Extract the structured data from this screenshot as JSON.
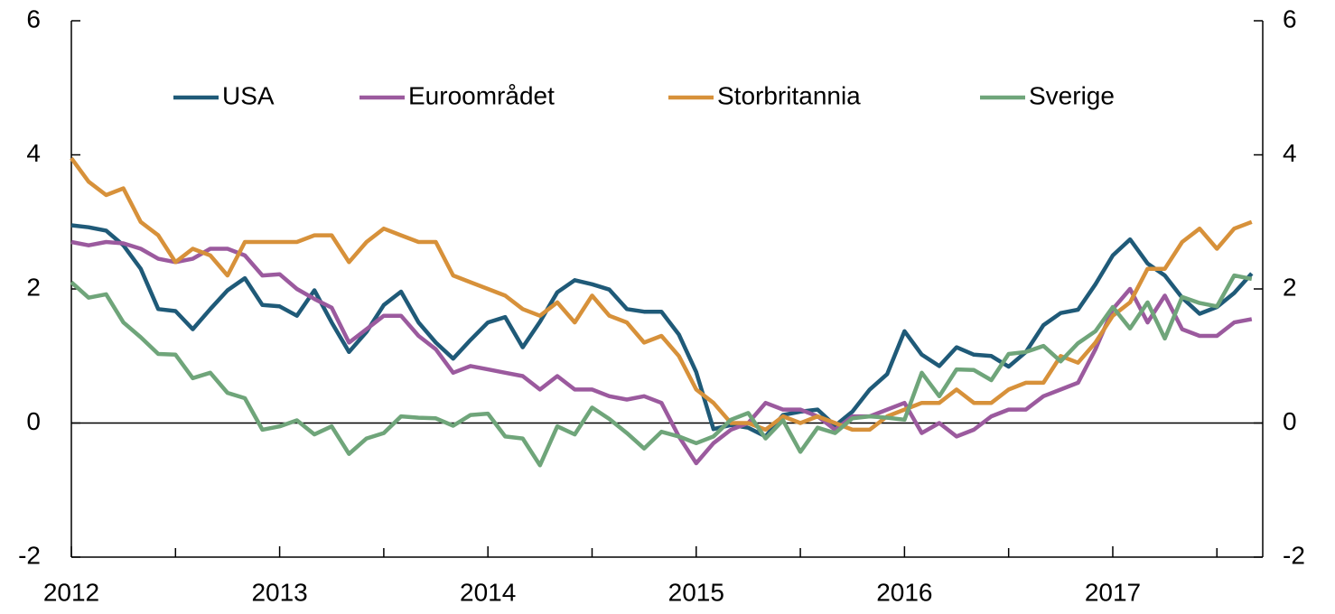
{
  "chart_data": {
    "type": "line",
    "xlim": [
      2012,
      2017.72
    ],
    "xticks": [
      2012,
      2013,
      2014,
      2015,
      2016,
      2017
    ],
    "xminorticks": [
      2012.5,
      2013.5,
      2014.5,
      2015.5,
      2016.5,
      2017.5
    ],
    "ylim": [
      -2,
      6
    ],
    "yticks": [
      -2,
      0,
      2,
      4,
      6
    ],
    "y2lim": [
      -2,
      6
    ],
    "y2ticks": [
      -2,
      0,
      2,
      4,
      6
    ],
    "zero_line": true,
    "legend": "top",
    "x": [
      2012,
      2012.083,
      2012.167,
      2012.25,
      2012.333,
      2012.417,
      2012.5,
      2012.583,
      2012.667,
      2012.75,
      2012.833,
      2012.917,
      2013,
      2013.083,
      2013.167,
      2013.25,
      2013.333,
      2013.417,
      2013.5,
      2013.583,
      2013.667,
      2013.75,
      2013.833,
      2013.917,
      2014,
      2014.083,
      2014.167,
      2014.25,
      2014.333,
      2014.417,
      2014.5,
      2014.583,
      2014.667,
      2014.75,
      2014.833,
      2014.917,
      2015,
      2015.083,
      2015.167,
      2015.25,
      2015.333,
      2015.417,
      2015.5,
      2015.583,
      2015.667,
      2015.75,
      2015.833,
      2015.917,
      2016,
      2016.083,
      2016.167,
      2016.25,
      2016.333,
      2016.417,
      2016.5,
      2016.583,
      2016.667,
      2016.75,
      2016.833,
      2016.917,
      2017,
      2017.083,
      2017.167,
      2017.25,
      2017.333,
      2017.417,
      2017.5,
      2017.583,
      2017.667
    ],
    "series": [
      {
        "name": "USA",
        "color": "#1f5a78",
        "values": [
          2.95,
          2.92,
          2.87,
          2.65,
          2.3,
          1.7,
          1.67,
          1.4,
          1.7,
          1.98,
          2.16,
          1.76,
          1.74,
          1.6,
          1.98,
          1.5,
          1.06,
          1.36,
          1.76,
          1.96,
          1.5,
          1.2,
          0.96,
          1.24,
          1.5,
          1.58,
          1.13,
          1.51,
          1.95,
          2.13,
          2.07,
          1.99,
          1.7,
          1.66,
          1.66,
          1.32,
          0.76,
          -0.09,
          -0.03,
          -0.07,
          -0.2,
          0.12,
          0.17,
          0.2,
          -0.04,
          0.17,
          0.5,
          0.73,
          1.37,
          1.02,
          0.85,
          1.13,
          1.02,
          1.0,
          0.84,
          1.06,
          1.46,
          1.64,
          1.69,
          2.07,
          2.5,
          2.74,
          2.38,
          2.2,
          1.87,
          1.63,
          1.73,
          1.94,
          2.23
        ]
      },
      {
        "name": "Euroområdet",
        "color": "#9b5a9e",
        "values": [
          2.7,
          2.65,
          2.7,
          2.68,
          2.6,
          2.45,
          2.4,
          2.45,
          2.6,
          2.6,
          2.5,
          2.2,
          2.22,
          2.0,
          1.85,
          1.72,
          1.2,
          1.4,
          1.6,
          1.6,
          1.3,
          1.1,
          0.75,
          0.85,
          0.8,
          0.75,
          0.7,
          0.5,
          0.7,
          0.5,
          0.5,
          0.4,
          0.35,
          0.4,
          0.3,
          -0.2,
          -0.6,
          -0.3,
          -0.1,
          0.0,
          0.3,
          0.2,
          0.2,
          0.1,
          -0.1,
          0.1,
          0.1,
          0.2,
          0.3,
          -0.15,
          0.0,
          -0.2,
          -0.1,
          0.1,
          0.2,
          0.2,
          0.4,
          0.5,
          0.6,
          1.1,
          1.7,
          2.0,
          1.5,
          1.9,
          1.4,
          1.3,
          1.3,
          1.5,
          1.55
        ]
      },
      {
        "name": "Storbritannia",
        "color": "#d7913a",
        "values": [
          3.95,
          3.6,
          3.4,
          3.5,
          3.0,
          2.8,
          2.4,
          2.6,
          2.5,
          2.2,
          2.7,
          2.7,
          2.7,
          2.7,
          2.8,
          2.8,
          2.4,
          2.7,
          2.9,
          2.8,
          2.7,
          2.7,
          2.2,
          2.1,
          2.0,
          1.9,
          1.7,
          1.6,
          1.8,
          1.5,
          1.9,
          1.6,
          1.5,
          1.2,
          1.3,
          1.0,
          0.5,
          0.3,
          0.0,
          0.0,
          -0.1,
          0.1,
          0.0,
          0.1,
          0.0,
          -0.1,
          -0.1,
          0.1,
          0.2,
          0.3,
          0.3,
          0.5,
          0.3,
          0.3,
          0.5,
          0.6,
          0.6,
          1.0,
          0.9,
          1.2,
          1.6,
          1.8,
          2.3,
          2.3,
          2.7,
          2.9,
          2.6,
          2.9,
          3.0
        ]
      },
      {
        "name": "Sverige",
        "color": "#6fa57a",
        "values": [
          2.1,
          1.87,
          1.92,
          1.5,
          1.28,
          1.03,
          1.02,
          0.67,
          0.75,
          0.45,
          0.37,
          -0.1,
          -0.05,
          0.04,
          -0.17,
          -0.05,
          -0.46,
          -0.23,
          -0.15,
          0.1,
          0.08,
          0.07,
          -0.04,
          0.12,
          0.14,
          -0.2,
          -0.23,
          -0.63,
          -0.05,
          -0.17,
          0.23,
          0.06,
          -0.15,
          -0.38,
          -0.13,
          -0.2,
          -0.3,
          -0.2,
          0.05,
          0.15,
          -0.23,
          0.04,
          -0.43,
          -0.07,
          -0.15,
          0.07,
          0.1,
          0.08,
          0.05,
          0.75,
          0.4,
          0.8,
          0.79,
          0.64,
          1.03,
          1.06,
          1.15,
          0.92,
          1.19,
          1.37,
          1.73,
          1.41,
          1.8,
          1.26,
          1.88,
          1.79,
          1.74,
          2.2,
          2.15
        ]
      }
    ]
  }
}
